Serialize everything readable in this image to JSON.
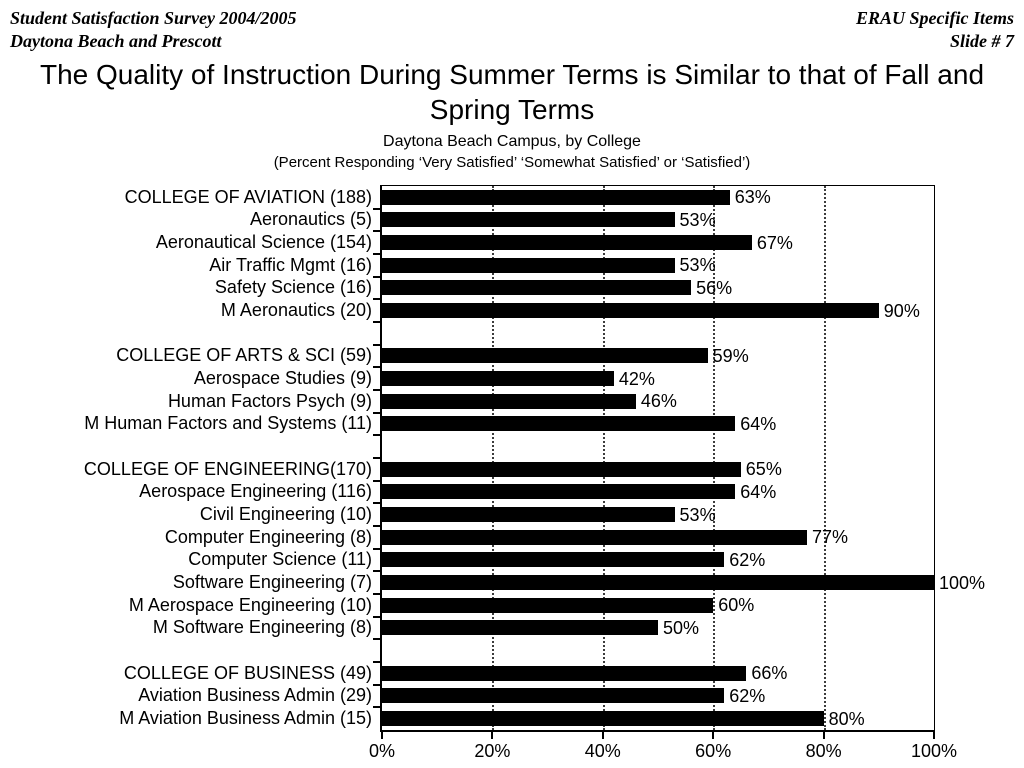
{
  "header": {
    "left_line1": "Student Satisfaction Survey 2004/2005",
    "left_line2": "Daytona Beach and Prescott",
    "right_line1": "ERAU Specific Items",
    "right_line2": "Slide # 7"
  },
  "title": "The Quality of Instruction During Summer Terms is Similar to that of Fall and\nSpring Terms",
  "subtitle": "Daytona Beach Campus, by College",
  "note": "(Percent Responding ‘Very Satisfied’ ‘Somewhat Satisfied’ or ‘Satisfied’)",
  "chart_data": {
    "type": "bar",
    "orientation": "horizontal",
    "title": "The Quality of Instruction During Summer Terms is Similar to that of Fall and Spring Terms",
    "subtitle": "Daytona Beach Campus, by College",
    "note": "(Percent Responding ‘Very Satisfied’ ‘Somewhat Satisfied’ or ‘Satisfied’)",
    "value_unit": "%",
    "xlim": [
      0,
      100
    ],
    "x_ticks": [
      0,
      20,
      40,
      60,
      80,
      100
    ],
    "x_tick_labels": [
      "0%",
      "20%",
      "40%",
      "60%",
      "80%",
      "100%"
    ],
    "gridlines_at": [
      20,
      40,
      60,
      80
    ],
    "grid_style": "dotted-vertical",
    "bar_color": "#000000",
    "text_color": "#000000",
    "background_color": "#ffffff",
    "legend": false,
    "data_labels": true,
    "groups": [
      {
        "rows": [
          {
            "label": "COLLEGE OF AVIATION (188)",
            "value": 63
          },
          {
            "label": "Aeronautics (5)",
            "value": 53
          },
          {
            "label": "Aeronautical Science (154)",
            "value": 67
          },
          {
            "label": "Air Traffic Mgmt (16)",
            "value": 53
          },
          {
            "label": "Safety Science (16)",
            "value": 56
          },
          {
            "label": "M Aeronautics (20)",
            "value": 90
          }
        ]
      },
      {
        "rows": [
          {
            "label": "COLLEGE OF ARTS & SCI (59)",
            "value": 59
          },
          {
            "label": "Aerospace Studies (9)",
            "value": 42
          },
          {
            "label": "Human Factors Psych (9)",
            "value": 46
          },
          {
            "label": "M Human Factors and Systems (11)",
            "value": 64
          }
        ]
      },
      {
        "rows": [
          {
            "label": "COLLEGE OF ENGINEERING(170)",
            "value": 65
          },
          {
            "label": "Aerospace Engineering (116)",
            "value": 64
          },
          {
            "label": "Civil Engineering (10)",
            "value": 53
          },
          {
            "label": "Computer Engineering (8)",
            "value": 77
          },
          {
            "label": "Computer Science (11)",
            "value": 62
          },
          {
            "label": "Software Engineering (7)",
            "value": 100
          },
          {
            "label": "M Aerospace Engineering (10)",
            "value": 60
          },
          {
            "label": "M Software Engineering (8)",
            "value": 50
          }
        ]
      },
      {
        "rows": [
          {
            "label": "COLLEGE OF BUSINESS (49)",
            "value": 66
          },
          {
            "label": "Aviation Business Admin (29)",
            "value": 62
          },
          {
            "label": "M Aviation Business Admin (15)",
            "value": 80
          }
        ]
      }
    ]
  }
}
